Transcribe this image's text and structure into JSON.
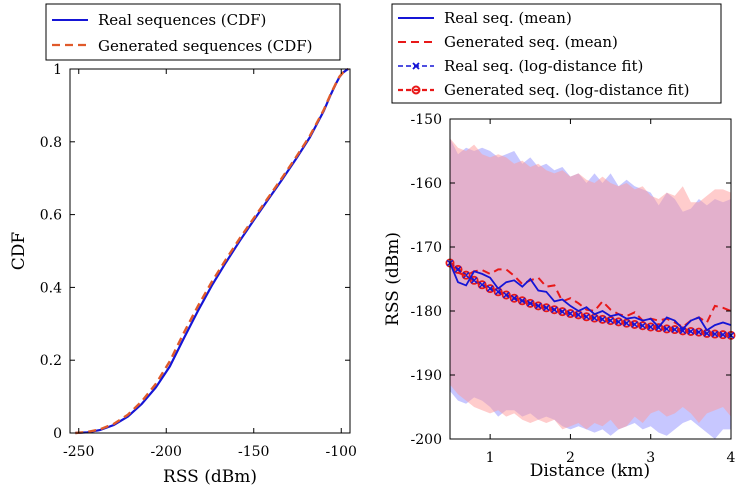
{
  "chart_data": [
    {
      "type": "line",
      "title": "",
      "xlabel": "RSS (dBm)",
      "ylabel": "CDF",
      "xlim": [
        -255,
        -95
      ],
      "ylim": [
        0,
        1
      ],
      "xticks": [
        -250,
        -200,
        -150,
        -100
      ],
      "xtick_labels": [
        "-250",
        "-200",
        "-150",
        "-100"
      ],
      "yticks": [
        0,
        0.2,
        0.4,
        0.6,
        0.8,
        1
      ],
      "ytick_labels": [
        "0",
        "0.2",
        "0.4",
        "0.6",
        "0.8",
        "1"
      ],
      "legend_position": "top-left, above plot",
      "series": [
        {
          "name": "Real sequences (CDF)",
          "color": "#1515d6",
          "style": "solid",
          "x": [
            -252,
            -245,
            -238,
            -230,
            -222,
            -214,
            -206,
            -198,
            -190,
            -182,
            -174,
            -166,
            -158,
            -150,
            -142,
            -134,
            -126,
            -118,
            -110,
            -106,
            -103,
            -101,
            -99,
            -97,
            -96
          ],
          "y": [
            0,
            0.002,
            0.008,
            0.022,
            0.045,
            0.08,
            0.125,
            0.183,
            0.26,
            0.335,
            0.405,
            0.468,
            0.528,
            0.585,
            0.64,
            0.695,
            0.752,
            0.812,
            0.885,
            0.93,
            0.96,
            0.978,
            0.99,
            0.997,
            1.0
          ]
        },
        {
          "name": "Generated sequences (CDF)",
          "color": "#e05a2a",
          "style": "dashed",
          "x": [
            -252,
            -245,
            -238,
            -230,
            -222,
            -214,
            -206,
            -198,
            -190,
            -182,
            -174,
            -166,
            -158,
            -150,
            -142,
            -134,
            -126,
            -118,
            -110,
            -106,
            -103,
            -101,
            -99,
            -97,
            -96
          ],
          "y": [
            0,
            0.003,
            0.01,
            0.025,
            0.05,
            0.087,
            0.135,
            0.197,
            0.275,
            0.348,
            0.415,
            0.476,
            0.535,
            0.59,
            0.645,
            0.7,
            0.757,
            0.816,
            0.888,
            0.932,
            0.961,
            0.979,
            0.99,
            0.997,
            1.0
          ]
        }
      ]
    },
    {
      "type": "line",
      "title": "",
      "xlabel": "Distance (km)",
      "ylabel": "RSS (dBm)",
      "xlim": [
        0.5,
        4
      ],
      "ylim": [
        -200,
        -150
      ],
      "xticks": [
        1,
        2,
        3,
        4
      ],
      "xtick_labels": [
        "1",
        "2",
        "3",
        "4"
      ],
      "yticks": [
        -200,
        -190,
        -180,
        -170,
        -160,
        -150
      ],
      "ytick_labels": [
        "-200",
        "-190",
        "-180",
        "-170",
        "-160",
        "-150"
      ],
      "legend_position": "top, above plot",
      "x": [
        0.5,
        0.6,
        0.7,
        0.8,
        0.9,
        1.0,
        1.1,
        1.2,
        1.3,
        1.4,
        1.5,
        1.6,
        1.7,
        1.8,
        1.9,
        2.0,
        2.1,
        2.2,
        2.3,
        2.4,
        2.5,
        2.6,
        2.7,
        2.8,
        2.9,
        3.0,
        3.1,
        3.2,
        3.3,
        3.4,
        3.5,
        3.6,
        3.7,
        3.8,
        3.9,
        4.0
      ],
      "series": [
        {
          "name": "Real seq. (mean)",
          "color": "#1515d6",
          "style": "solid",
          "values": [
            -172.5,
            -175.5,
            -176.0,
            -173.8,
            -174.2,
            -174.8,
            -176.5,
            -175.5,
            -175.2,
            -176.2,
            -175.0,
            -176.8,
            -177.0,
            -178.5,
            -178.2,
            -179.2,
            -180.0,
            -179.4,
            -180.5,
            -180.0,
            -180.8,
            -180.5,
            -181.2,
            -181.0,
            -181.5,
            -181.2,
            -182.5,
            -181.0,
            -181.5,
            -182.8,
            -181.5,
            -181.0,
            -183.0,
            -182.2,
            -181.8,
            -182.2
          ]
        },
        {
          "name": "Generated seq. (mean)",
          "color": "#e81818",
          "style": "dashed",
          "values": [
            -172.5,
            -174.0,
            -174.5,
            -173.8,
            -173.6,
            -174.2,
            -173.5,
            -173.5,
            -174.5,
            -175.8,
            -175.2,
            -174.8,
            -176.2,
            -176.0,
            -178.5,
            -178.0,
            -178.8,
            -179.8,
            -180.0,
            -178.5,
            -179.8,
            -180.5,
            -180.8,
            -180.2,
            -181.5,
            -181.2,
            -181.5,
            -181.2,
            -181.8,
            -182.5,
            -181.5,
            -181.0,
            -181.8,
            -179.2,
            -179.5,
            -180.0
          ]
        },
        {
          "name": "Real seq. (log-distance fit)",
          "color": "#1515d6",
          "style": "dashed-x",
          "values": [
            -172.5,
            -173.5,
            -174.4,
            -175.2,
            -175.9,
            -176.5,
            -177.0,
            -177.5,
            -178.0,
            -178.4,
            -178.8,
            -179.2,
            -179.5,
            -179.8,
            -180.1,
            -180.4,
            -180.6,
            -180.9,
            -181.1,
            -181.3,
            -181.5,
            -181.7,
            -181.9,
            -182.1,
            -182.3,
            -182.5,
            -182.6,
            -182.8,
            -182.9,
            -183.1,
            -183.2,
            -183.3,
            -183.5,
            -183.6,
            -183.7,
            -183.8
          ]
        },
        {
          "name": "Generated seq. (log-distance fit)",
          "color": "#e81818",
          "style": "dashed-circle",
          "values": [
            -172.5,
            -173.5,
            -174.4,
            -175.2,
            -175.9,
            -176.5,
            -177.0,
            -177.5,
            -178.0,
            -178.4,
            -178.8,
            -179.2,
            -179.5,
            -179.8,
            -180.1,
            -180.4,
            -180.6,
            -180.9,
            -181.1,
            -181.3,
            -181.5,
            -181.7,
            -181.9,
            -182.1,
            -182.3,
            -182.5,
            -182.6,
            -182.8,
            -182.9,
            -183.1,
            -183.2,
            -183.3,
            -183.5,
            -183.6,
            -183.7,
            -183.8
          ]
        }
      ],
      "bands": [
        {
          "name": "Real seq. spread",
          "color": "#8f8fff",
          "upper": [
            -153.0,
            -155.5,
            -154.5,
            -155.0,
            -154.5,
            -155.0,
            -156.0,
            -155.5,
            -155.0,
            -157.0,
            -156.0,
            -157.5,
            -157.0,
            -158.0,
            -157.5,
            -159.0,
            -158.5,
            -160.0,
            -158.5,
            -160.0,
            -158.5,
            -160.5,
            -159.5,
            -160.5,
            -161.0,
            -161.5,
            -163.5,
            -161.5,
            -162.5,
            -164.5,
            -164.0,
            -162.5,
            -163.5,
            -162.5,
            -163.0,
            -162.5
          ],
          "lower": [
            -192.5,
            -194.0,
            -194.5,
            -193.5,
            -194.0,
            -195.0,
            -196.5,
            -195.5,
            -195.5,
            -196.5,
            -196.0,
            -197.0,
            -196.5,
            -197.0,
            -198.0,
            -198.5,
            -198.0,
            -198.5,
            -199.0,
            -198.5,
            -199.5,
            -198.5,
            -198.0,
            -197.5,
            -198.5,
            -198.0,
            -199.0,
            -199.5,
            -198.5,
            -197.5,
            -197.0,
            -198.0,
            -199.0,
            -200.0,
            -198.5,
            -198.5
          ]
        },
        {
          "name": "Generated seq. spread",
          "color": "#ff9a9a",
          "upper": [
            -153.0,
            -154.5,
            -155.0,
            -154.0,
            -155.5,
            -156.0,
            -155.5,
            -156.0,
            -157.0,
            -156.5,
            -157.5,
            -157.0,
            -158.0,
            -158.5,
            -158.0,
            -159.0,
            -158.5,
            -159.5,
            -160.0,
            -159.0,
            -160.0,
            -160.5,
            -160.0,
            -161.0,
            -160.5,
            -162.0,
            -162.5,
            -161.5,
            -162.0,
            -160.5,
            -163.0,
            -163.0,
            -162.0,
            -161.0,
            -161.0,
            -161.5
          ],
          "lower": [
            -191.5,
            -193.0,
            -194.0,
            -195.0,
            -195.5,
            -196.0,
            -195.5,
            -196.5,
            -196.0,
            -197.0,
            -197.5,
            -197.0,
            -197.5,
            -197.0,
            -198.5,
            -198.0,
            -197.5,
            -198.5,
            -197.5,
            -198.0,
            -197.0,
            -198.5,
            -198.0,
            -196.5,
            -197.5,
            -196.0,
            -195.5,
            -196.5,
            -196.0,
            -195.0,
            -196.0,
            -197.5,
            -196.0,
            -195.5,
            -195.0,
            -196.5
          ]
        }
      ]
    }
  ]
}
